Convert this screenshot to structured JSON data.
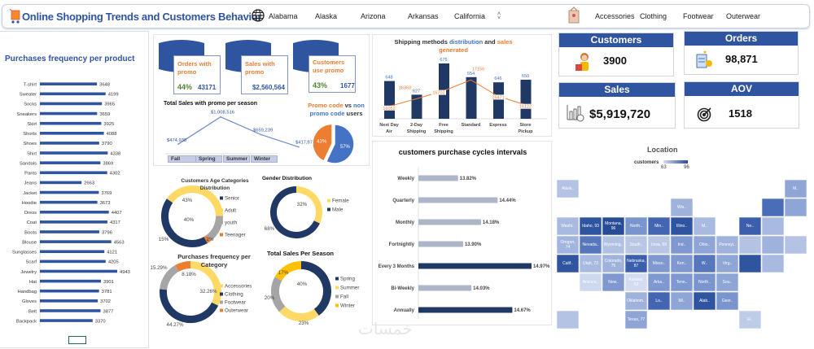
{
  "header": {
    "title": "Online Shopping Trends and Customers Behavior",
    "icons": {
      "app": "shopping-cart-icon",
      "location": "globe-icon",
      "category": "clothing-tag-icon",
      "scroll": "up-down-arrows-icon"
    },
    "location_slicer": [
      "Alabama",
      "Alaska",
      "Arizona",
      "Arkansas",
      "California"
    ],
    "category_slicer": [
      "Accessories",
      "Clothing",
      "Footwear",
      "Outerwear"
    ]
  },
  "promo": {
    "cards": [
      {
        "title": "Orders with promo",
        "pct": "44%",
        "value": "43171"
      },
      {
        "title": "Sales with promo",
        "value": "$2,560,564"
      },
      {
        "title": "Customers use promo",
        "pct": "43%",
        "value": "1677"
      }
    ],
    "season_title": "Total Sales with promo per season",
    "season_buttons": [
      "Fall",
      "Spring",
      "Summer",
      "Winter"
    ],
    "pie_title_a": "Promo code",
    "pie_title_vs": " vs ",
    "pie_title_b": "non promo code",
    "pie_title_c": " users"
  },
  "kpis": {
    "customers": {
      "label": "Customers",
      "value": "3900",
      "icon": "shopper-icon"
    },
    "orders": {
      "label": "Orders",
      "value": "98,871",
      "icon": "order-clipboard-icon"
    },
    "sales": {
      "label": "Sales",
      "value": "$5,919,720",
      "icon": "sales-chart-icon"
    },
    "aov": {
      "label": "AOV",
      "value": "1518",
      "icon": "target-icon"
    }
  },
  "watermark": "خمسات",
  "colors": {
    "navy": "#1f3864",
    "blue": "#2f54a0",
    "yellow": "#ffd966",
    "gray": "#a5a5a5",
    "orange": "#ed7d31",
    "gold": "#ffc000",
    "lightbar": "#adb6c9",
    "pieblue": "#4472c4"
  },
  "chart_data": [
    {
      "id": "products",
      "type": "bar",
      "orientation": "horizontal",
      "title": "Purchases frequency per product",
      "categories": [
        "T-shirt",
        "Sweater",
        "Socks",
        "Sneakers",
        "Skirt",
        "Shorts",
        "Shoes",
        "Shirt",
        "Sandals",
        "Pants",
        "Jeans",
        "Jacket",
        "Hoodie",
        "Dress",
        "Coat",
        "Boots",
        "Blouse",
        "Sunglasses",
        "Scarf",
        "Jewelry",
        "Hat",
        "Handbag",
        "Gloves",
        "Belt",
        "Backpack"
      ],
      "values": [
        3648,
        4199,
        3965,
        3659,
        3925,
        4088,
        3790,
        4338,
        3869,
        4302,
        2663,
        3769,
        3673,
        4407,
        4317,
        3796,
        4563,
        4121,
        4205,
        4943,
        3901,
        3781,
        3702,
        3877,
        3370
      ]
    },
    {
      "id": "promo_season",
      "type": "line",
      "title": "Total Sales with promo per season",
      "categories": [
        "Fall",
        "Spring",
        "Summer",
        "Winter"
      ],
      "values": [
        474938,
        1008516,
        659239,
        417871
      ],
      "labels": [
        "$474,938",
        "$1,008,516",
        "$659,239",
        "$417,871"
      ]
    },
    {
      "id": "promo_pie",
      "type": "pie",
      "categories": [
        "Promo code",
        "non promo code"
      ],
      "values": [
        43,
        57
      ],
      "labels": [
        "43%",
        "57%"
      ]
    },
    {
      "id": "shipping",
      "type": "bar",
      "title": "Shipping methods distribution and sales generated",
      "categories": [
        "Next Day Air",
        "2-Day Shipping",
        "Free Shipping",
        "Standard",
        "Express",
        "Store Pickup"
      ],
      "series": [
        {
          "name": "distribution",
          "type": "bar",
          "values": [
            648,
            627,
            675,
            654,
            646,
            650
          ]
        },
        {
          "name": "sales",
          "type": "line",
          "values": [
            16052,
            16368,
            16702,
            17156,
            16471,
            16122
          ]
        }
      ]
    },
    {
      "id": "cycles",
      "type": "bar",
      "orientation": "horizontal",
      "title": "customers purchase cycles intervals",
      "categories": [
        "Weekly",
        "Quarterly",
        "Monthly",
        "Fortnightly",
        "Every 3 Months",
        "Bi-Weekly",
        "Annually"
      ],
      "values": [
        13.82,
        14.44,
        14.18,
        13.9,
        14.97,
        14.03,
        14.67
      ],
      "labels": [
        "13.82%",
        "14.44%",
        "14.18%",
        "13.90%",
        "14.97%",
        "14.03%",
        "14.67%"
      ],
      "highlighted": [
        false,
        false,
        false,
        false,
        true,
        false,
        true
      ]
    },
    {
      "id": "age",
      "type": "pie",
      "title": "Customers Age Categories Distribution",
      "categories": [
        "Senior",
        "Adult",
        "youth",
        "Teenager"
      ],
      "values": [
        43,
        40,
        15,
        2
      ],
      "labels": [
        "43%",
        "40%",
        "15%",
        "2%"
      ]
    },
    {
      "id": "gender",
      "type": "pie",
      "title": "Gender Distribution",
      "categories": [
        "Female",
        "Male"
      ],
      "values": [
        32,
        68
      ],
      "labels": [
        "32%",
        "68%"
      ]
    },
    {
      "id": "category",
      "type": "pie",
      "title": "Purchases frequency  per Category",
      "categories": [
        "Accessories",
        "Clothing",
        "Footwear",
        "Outerwear"
      ],
      "values": [
        32.26,
        44.27,
        15.29,
        8.18
      ],
      "labels": [
        "32.26%",
        "44.27%",
        "15.29%",
        "8.18%"
      ]
    },
    {
      "id": "season",
      "type": "pie",
      "title": "Total Sales Per Season",
      "categories": [
        "Spring",
        "Summer",
        "Fall",
        "Winter"
      ],
      "values": [
        40,
        23,
        20,
        17
      ],
      "labels": [
        "40%",
        "23%",
        "20%",
        "17%"
      ]
    },
    {
      "id": "location",
      "type": "heatmap",
      "title": "Location",
      "legend_label": "customers",
      "range": [
        63,
        96
      ],
      "range_labels": [
        "63",
        "96"
      ],
      "states": [
        {
          "code": "AK",
          "label": "Alask..",
          "color": "#b4c3e3"
        },
        {
          "code": "ME",
          "label": "M..",
          "color": "#8ea5d6"
        },
        {
          "code": "WI",
          "label": "Wis..",
          "color": "#9fb2dc"
        },
        {
          "code": "VT",
          "label": "",
          "color": "#4a6db8"
        },
        {
          "code": "NH",
          "label": "",
          "color": "#8ea5d6"
        },
        {
          "code": "WA",
          "label": "Washi..",
          "color": "#a9bae0"
        },
        {
          "code": "ID",
          "label": "Idaho, 93",
          "value": 93,
          "color": "#2f54a0"
        },
        {
          "code": "MT",
          "label": "Montana, 96",
          "value": 96,
          "color": "#284b96"
        },
        {
          "code": "ND",
          "label": "North..",
          "color": "#7a95cd"
        },
        {
          "code": "MN",
          "label": "Min..",
          "color": "#4466b2"
        },
        {
          "code": "IL",
          "label": "Illino..",
          "color": "#2f54a0"
        },
        {
          "code": "MI",
          "label": "M..",
          "color": "#a9bae0"
        },
        {
          "code": "NY",
          "label": "Ne..",
          "color": "#3c5fad"
        },
        {
          "code": "MA",
          "label": "",
          "color": "#a9bae0"
        },
        {
          "code": "OR",
          "label": "Oregon, 74",
          "value": 74,
          "color": "#a3b5de"
        },
        {
          "code": "NV",
          "label": "Nevada..",
          "color": "#5777bd"
        },
        {
          "code": "WY",
          "label": "Wyoming..",
          "color": "#b1c1e2"
        },
        {
          "code": "SD",
          "label": "South..",
          "color": "#b9c7e5"
        },
        {
          "code": "IA",
          "label": "Iowa, 69",
          "value": 69,
          "color": "#b9c7e5"
        },
        {
          "code": "IN",
          "label": "Ind..",
          "color": "#7f98cf"
        },
        {
          "code": "OH",
          "label": "Ohio..",
          "color": "#8ea5d6"
        },
        {
          "code": "PA",
          "label": "Pennsyl..",
          "color": "#9fb2dc"
        },
        {
          "code": "NJ",
          "label": "",
          "color": "#b4c3e3"
        },
        {
          "code": "CT",
          "label": "",
          "color": "#9fb2dc"
        },
        {
          "code": "RI",
          "label": "",
          "color": "#b4c3e3"
        },
        {
          "code": "CA",
          "label": "Calif..",
          "color": "#2f54a0"
        },
        {
          "code": "UT",
          "label": "Utah, 73",
          "value": 73,
          "color": "#a9bae0"
        },
        {
          "code": "CO",
          "label": "Colorado, 75",
          "value": 75,
          "color": "#9fb2dc"
        },
        {
          "code": "NE",
          "label": "Nebraska, 87",
          "value": 87,
          "color": "#3c5fad"
        },
        {
          "code": "MO",
          "label": "Misso..",
          "color": "#7f98cf"
        },
        {
          "code": "KY",
          "label": "Ken..",
          "color": "#7f98cf"
        },
        {
          "code": "WV",
          "label": "W..",
          "color": "#5777bd"
        },
        {
          "code": "VA",
          "label": "Virg..",
          "color": "#8ea5d6"
        },
        {
          "code": "MD",
          "label": "",
          "color": "#2f54a0"
        },
        {
          "code": "DE",
          "label": "",
          "color": "#a9bae0"
        },
        {
          "code": "AZ",
          "label": "Arizona..",
          "color": "#cdd7ee"
        },
        {
          "code": "NM",
          "label": "New..",
          "color": "#7f98cf"
        },
        {
          "code": "KS",
          "label": "Kansas, 63",
          "value": 63,
          "color": "#d3dcf0"
        },
        {
          "code": "AR",
          "label": "Arka..",
          "color": "#7f98cf"
        },
        {
          "code": "TN",
          "label": "Tenn..",
          "color": "#7f98cf"
        },
        {
          "code": "NC",
          "label": "North..",
          "color": "#7a95cd"
        },
        {
          "code": "SC",
          "label": "Sou..",
          "color": "#8ea5d6"
        },
        {
          "code": "OK",
          "label": "Oklahom..",
          "color": "#9fb2dc"
        },
        {
          "code": "LA",
          "label": "Lo..",
          "color": "#4466b2"
        },
        {
          "code": "MS",
          "label": "Mi..",
          "color": "#8ea5d6"
        },
        {
          "code": "AL",
          "label": "Alab..",
          "color": "#2f54a0"
        },
        {
          "code": "GA",
          "label": "Geor..",
          "color": "#7a95cd"
        },
        {
          "code": "HI",
          "label": "",
          "color": "#b4c3e3"
        },
        {
          "code": "TX",
          "label": "Texas, 77",
          "value": 77,
          "color": "#8ea5d6"
        },
        {
          "code": "FL",
          "label": "Fl..",
          "color": "#bfcce8"
        }
      ]
    }
  ]
}
